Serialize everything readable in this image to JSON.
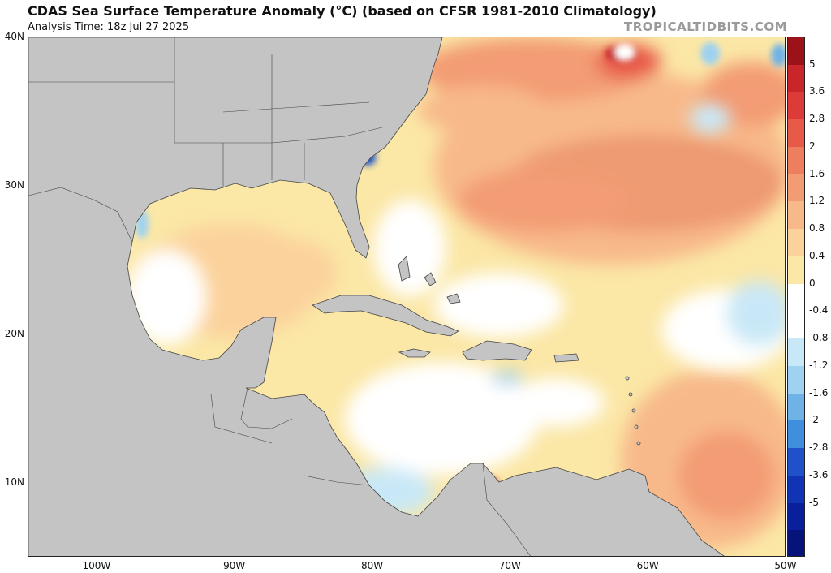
{
  "header": {
    "title": "CDAS Sea Surface Temperature Anomaly (°C) (based on CFSR 1981-2010 Climatology)",
    "subtitle": "Analysis Time: 18z Jul 27 2025",
    "brand": "TROPICALTIDBITS.COM"
  },
  "colors": {
    "land": "#c4c4c4",
    "land_border": "#444444",
    "ocean_neutral": "#ffffff",
    "warm_light": "#fbe7a6",
    "warm_mid": "#f8b98a",
    "warm_strong": "#ee7f5e",
    "warm_max": "#c8262a",
    "cool_light": "#c9e8f7",
    "cool_mid": "#6fb3e6",
    "cool_strong": "#1f52c8"
  },
  "map": {
    "lat_range": [
      5,
      40
    ],
    "lon_range": [
      -105,
      -50
    ],
    "lat_ticks": [
      {
        "value": 40,
        "label": "40N"
      },
      {
        "value": 30,
        "label": "30N"
      },
      {
        "value": 20,
        "label": "20N"
      },
      {
        "value": 10,
        "label": "10N"
      }
    ],
    "lon_ticks": [
      {
        "value": -100,
        "label": "100W"
      },
      {
        "value": -90,
        "label": "90W"
      },
      {
        "value": -80,
        "label": "80W"
      },
      {
        "value": -70,
        "label": "70W"
      },
      {
        "value": -60,
        "label": "60W"
      },
      {
        "value": -50,
        "label": "50W"
      }
    ]
  },
  "colorbar": {
    "labels": [
      "5",
      "3.6",
      "2.8",
      "2",
      "1.6",
      "1.2",
      "0.8",
      "0.4",
      "0",
      "-0.4",
      "-0.8",
      "-1.2",
      "-1.6",
      "-2",
      "-2.8",
      "-3.6",
      "-5"
    ],
    "colors": [
      "#9b1218",
      "#c8262a",
      "#dc3b3a",
      "#e85a48",
      "#ee7f5e",
      "#f39c74",
      "#f8b98a",
      "#fbd29c",
      "#fbe7a6",
      "#ffffff",
      "#ffffff",
      "#c9e8f7",
      "#9fd2f0",
      "#6fb3e6",
      "#3f8fdc",
      "#1f52c8",
      "#1034b4",
      "#0a1f9c",
      "#06137a"
    ]
  }
}
